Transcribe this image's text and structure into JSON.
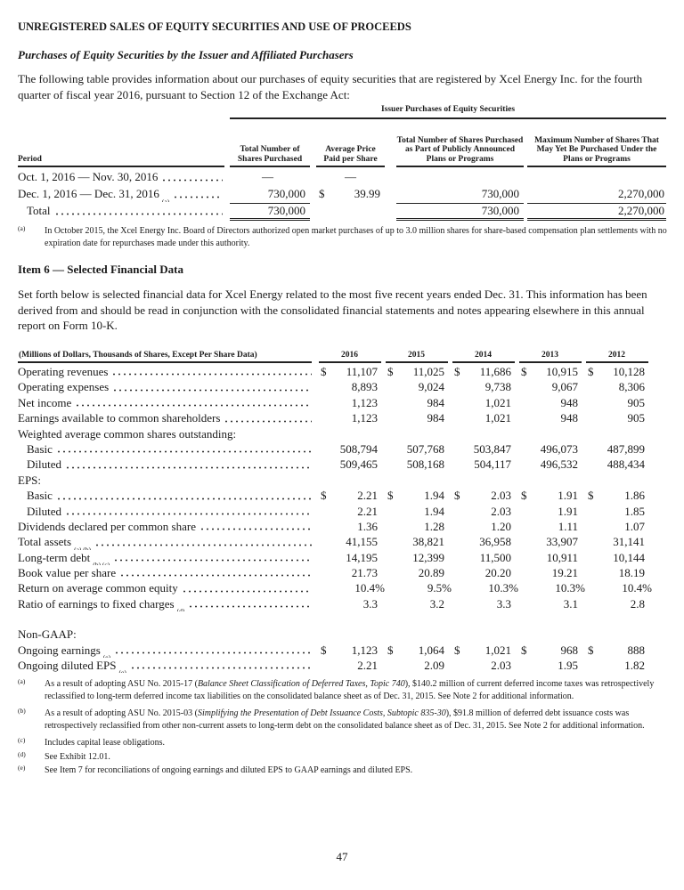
{
  "heading": "UNREGISTERED SALES OF EQUITY SECURITIES AND USE OF PROCEEDS",
  "subheading": "Purchases of Equity Securities by the Issuer and Affiliated Purchasers",
  "intro": "The following table provides information about our purchases of equity securities that are registered by Xcel Energy Inc. for the fourth quarter of fiscal year 2016, pursuant to Section 12 of the Exchange Act:",
  "purchases": {
    "group_header": "Issuer Purchases of Equity Securities",
    "headers": [
      "Period",
      "Total Number of Shares Purchased",
      "Average Price Paid per Share",
      "Total Number of Shares Purchased as Part of Publicly Announced Plans or Programs",
      "Maximum Number of Shares That May Yet Be Purchased Under the Plans or Programs"
    ],
    "rows": [
      {
        "period": "Oct. 1, 2016 — Nov. 30, 2016",
        "sup": "",
        "shares": "—",
        "dollar": "",
        "price": "—",
        "plan_shares": "",
        "max_shares": ""
      },
      {
        "period": "Dec. 1, 2016 — Dec. 31, 2016",
        "sup": "(a)",
        "shares": "730,000",
        "dollar": "$",
        "price": "39.99",
        "plan_shares": "730,000",
        "max_shares": "2,270,000"
      },
      {
        "period": "Total",
        "sup": "",
        "shares": "730,000",
        "dollar": "",
        "price": "",
        "plan_shares": "730,000",
        "max_shares": "2,270,000"
      }
    ],
    "footnote_mark": "(a)",
    "footnote": "In October 2015, the Xcel Energy Inc. Board of Directors authorized open market purchases of up to 3.0 million shares for share-based compensation plan settlements with no expiration date for repurchases made under this authority."
  },
  "item6_title": "Item 6 — Selected Financial Data",
  "item6_intro": "Set forth below is selected financial data for Xcel Energy related to the most five recent years ended Dec. 31.  This information has been derived from and should be read in conjunction with the consolidated financial statements and notes appearing elsewhere in this annual report on Form 10-K.",
  "financial": {
    "header_label": "(Millions of Dollars, Thousands of Shares, Except Per Share Data)",
    "years": [
      "2016",
      "2015",
      "2014",
      "2013",
      "2012"
    ],
    "rows": [
      {
        "label": "Operating revenues",
        "sup": "",
        "dollar": true,
        "values": [
          "11,107",
          "11,025",
          "11,686",
          "10,915",
          "10,128"
        ]
      },
      {
        "label": "Operating expenses",
        "sup": "",
        "values": [
          "8,893",
          "9,024",
          "9,738",
          "9,067",
          "8,306"
        ]
      },
      {
        "label": "Net income",
        "sup": "",
        "values": [
          "1,123",
          "984",
          "1,021",
          "948",
          "905"
        ]
      },
      {
        "label": "Earnings available to common shareholders",
        "sup": "",
        "values": [
          "1,123",
          "984",
          "1,021",
          "948",
          "905"
        ]
      },
      {
        "label": "Weighted average common shares outstanding:",
        "heading": true
      },
      {
        "label": "Basic",
        "sup": "",
        "indent": true,
        "values": [
          "508,794",
          "507,768",
          "503,847",
          "496,073",
          "487,899"
        ]
      },
      {
        "label": "Diluted",
        "sup": "",
        "indent": true,
        "values": [
          "509,465",
          "508,168",
          "504,117",
          "496,532",
          "488,434"
        ]
      },
      {
        "label": "EPS:",
        "heading": true
      },
      {
        "label": "Basic",
        "sup": "",
        "indent": true,
        "dollar": true,
        "values": [
          "2.21",
          "1.94",
          "2.03",
          "1.91",
          "1.86"
        ]
      },
      {
        "label": "Diluted",
        "sup": "",
        "indent": true,
        "values": [
          "2.21",
          "1.94",
          "2.03",
          "1.91",
          "1.85"
        ]
      },
      {
        "label": "Dividends declared per common share",
        "sup": "",
        "values": [
          "1.36",
          "1.28",
          "1.20",
          "1.11",
          "1.07"
        ]
      },
      {
        "label": "Total assets",
        "sup": "(a) (b)",
        "values": [
          "41,155",
          "38,821",
          "36,958",
          "33,907",
          "31,141"
        ]
      },
      {
        "label": "Long-term debt",
        "sup": "(b) (c)",
        "values": [
          "14,195",
          "12,399",
          "11,500",
          "10,911",
          "10,144"
        ]
      },
      {
        "label": "Book value per share",
        "sup": "",
        "values": [
          "21.73",
          "20.89",
          "20.20",
          "19.21",
          "18.19"
        ]
      },
      {
        "label": "Return on average common equity",
        "sup": "",
        "pct": true,
        "values": [
          "10.4%",
          "9.5%",
          "10.3%",
          "10.3%",
          "10.4%"
        ]
      },
      {
        "label": "Ratio of earnings to fixed charges",
        "sup": "(d)",
        "values": [
          "3.3",
          "3.2",
          "3.3",
          "3.1",
          "2.8"
        ]
      },
      {
        "blank": true
      },
      {
        "label": "Non-GAAP:",
        "heading": true
      },
      {
        "label": "Ongoing earnings",
        "sup": "(e)",
        "dollar": true,
        "values": [
          "1,123",
          "1,064",
          "1,021",
          "968",
          "888"
        ]
      },
      {
        "label": "Ongoing diluted EPS",
        "sup": "(e)",
        "values": [
          "2.21",
          "2.09",
          "2.03",
          "1.95",
          "1.82"
        ]
      }
    ],
    "footnotes": [
      {
        "mark": "(a)",
        "pre": "As a result of adopting ASU No. 2015-17 (",
        "em": "Balance Sheet Classification of Deferred Taxes, Topic 740",
        "post": "), $140.2 million of current deferred income taxes was retrospectively reclassified to long-term deferred income tax liabilities on the consolidated balance sheet as of Dec. 31, 2015.  See Note 2 for additional information."
      },
      {
        "mark": "(b)",
        "pre": "As a result of adopting ASU No. 2015-03 (",
        "em": "Simplifying the Presentation of Debt Issuance Costs, Subtopic 835-30",
        "post": "), $91.8 million of deferred debt issuance costs was retrospectively reclassified from other non-current assets to long-term debt on the consolidated balance sheet as of Dec. 31, 2015.  See Note 2 for additional information."
      },
      {
        "mark": "(c)",
        "pre": "Includes capital lease obligations.",
        "em": "",
        "post": ""
      },
      {
        "mark": "(d)",
        "pre": "See Exhibit 12.01.",
        "em": "",
        "post": ""
      },
      {
        "mark": "(e)",
        "pre": "See Item 7 for reconciliations of ongoing earnings and diluted EPS to GAAP earnings and diluted EPS.",
        "em": "",
        "post": ""
      }
    ]
  },
  "page_number": "47"
}
